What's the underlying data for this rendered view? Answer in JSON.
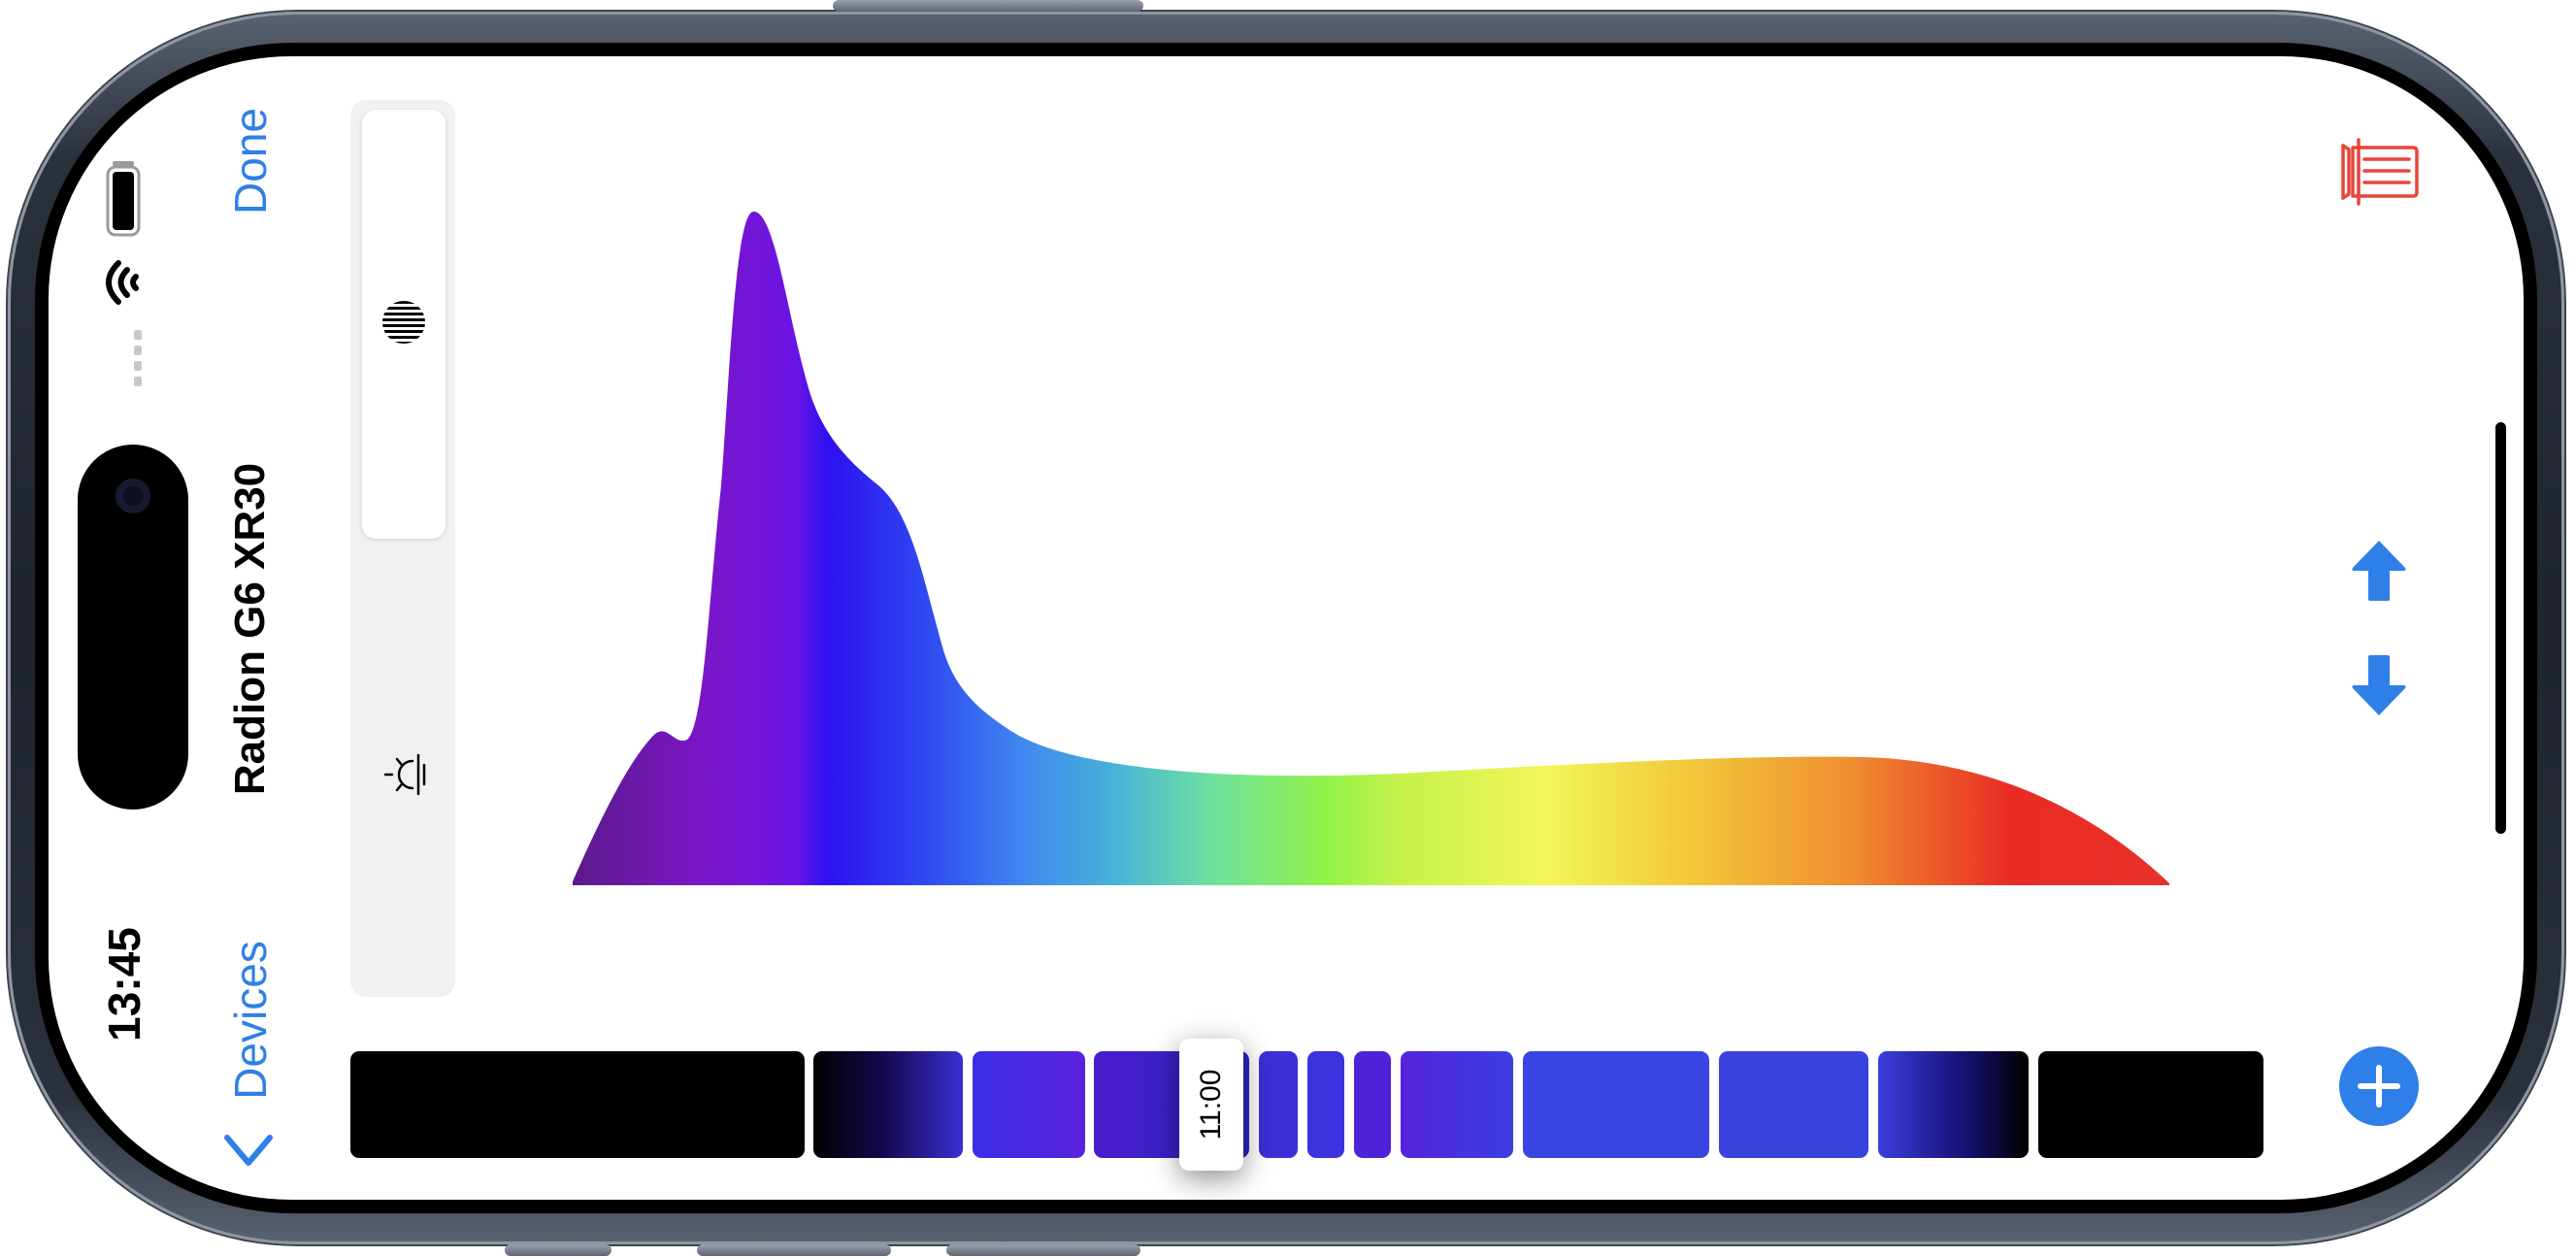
{
  "status_bar": {
    "time": "13:45",
    "icons": [
      "battery-icon",
      "wifi-icon",
      "signal-dots-icon"
    ]
  },
  "nav": {
    "back_label": "Devices",
    "title": "Radion G6 XR30",
    "done_label": "Done"
  },
  "mode_selector": {
    "modes": [
      "moon-mode-icon",
      "sun-mode-icon"
    ],
    "selected": "moon-mode-icon"
  },
  "toolbar": {
    "icons": [
      "delete-icon",
      "move-up-icon",
      "move-down-icon",
      "add-icon"
    ]
  },
  "timeline": {
    "handle_time": "11:00"
  },
  "colors": {
    "accent": "#2f7fe8",
    "delete": "#e8453a",
    "segment_dark": "#000000",
    "segment_blue": "#3a44e0",
    "segment_violet": "#5a22dd"
  }
}
